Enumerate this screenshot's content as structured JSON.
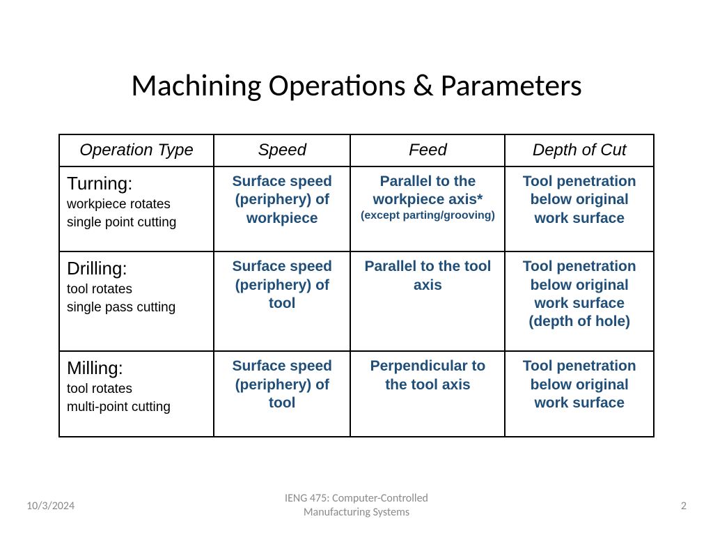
{
  "title": "Machining Operations & Parameters",
  "columns": [
    "Operation Type",
    "Speed",
    "Feed",
    "Depth of Cut"
  ],
  "rows": [
    {
      "op_title": "Turning:",
      "op_sub1": "workpiece rotates",
      "op_sub2": "single point cutting",
      "speed": "Surface speed (periphery) of workpiece",
      "feed": "Parallel to the workpiece axis*",
      "feed_note": "(except parting/grooving)",
      "depth": "Tool penetration below original work surface"
    },
    {
      "op_title": "Drilling:",
      "op_sub1": "tool rotates",
      "op_sub2": "single pass cutting",
      "speed": "Surface speed (periphery) of tool",
      "feed": "Parallel to the tool axis",
      "feed_note": "",
      "depth": "Tool penetration below original work surface (depth of hole)"
    },
    {
      "op_title": "Milling:",
      "op_sub1": "tool rotates",
      "op_sub2": "multi-point cutting",
      "speed": "Surface speed (periphery) of tool",
      "feed": "Perpendicular to the tool axis",
      "feed_note": "",
      "depth": "Tool penetration below original work surface"
    }
  ],
  "footer": {
    "date": "10/3/2024",
    "center_line1": "IENG 475: Computer-Controlled",
    "center_line2": "Manufacturing Systems",
    "page": "2"
  },
  "colors": {
    "cell_blue": "#1f4e79",
    "text_black": "#000000",
    "footer_gray": "#8a8a8a",
    "border": "#000000",
    "background": "#ffffff"
  }
}
